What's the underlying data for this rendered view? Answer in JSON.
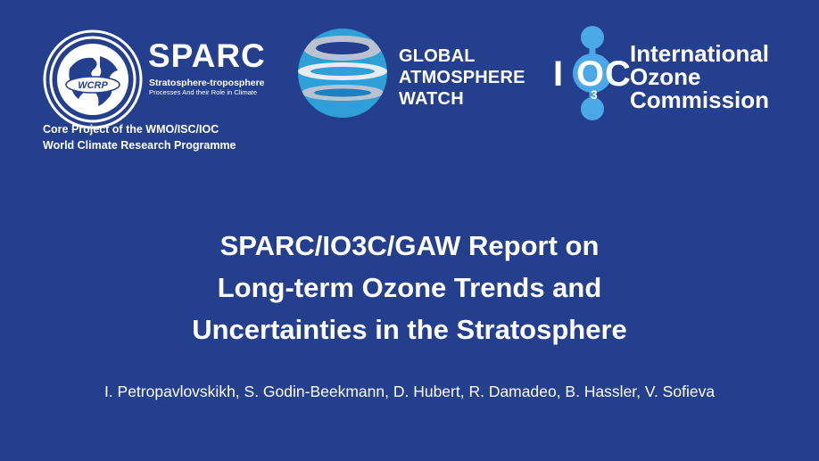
{
  "logos": {
    "sparc": {
      "mark_text": "WCRP",
      "name": "SPARC",
      "subtitle_1": "Stratosphere-troposphere",
      "subtitle_2": "Processes And their Role in Climate",
      "caption_line_1": "Core Project of the WMO/ISC/IOC",
      "caption_line_2": "World Climate Research Programme",
      "icon": "globe-icon"
    },
    "gaw": {
      "line_1": "GLOBAL",
      "line_2": "ATMOSPHERE",
      "line_3": "WATCH",
      "icon": "banded-sphere-icon"
    },
    "io3c": {
      "letter_i": "I",
      "letter_o": "O",
      "subscript": "3",
      "letter_c": "C",
      "line_1": "International",
      "line_2": "Ozone",
      "line_3": "Commission",
      "icon": "molecule-icon"
    }
  },
  "title": {
    "line_1": "SPARC/IO3C/GAW Report on",
    "line_2": "Long-term Ozone Trends and",
    "line_3": "Uncertainties in the Stratosphere"
  },
  "authors": "I. Petropavlovskikh, S. Godin-Beekmann, D. Hubert, R. Damadeo, B. Hassler, V. Sofieva",
  "colors": {
    "background": "#253f8f",
    "text": "#ffffff",
    "gaw_blue": "#2f9fd8",
    "gaw_grey": "#b9c3cf",
    "io3c_blue": "#4aa8e6"
  }
}
